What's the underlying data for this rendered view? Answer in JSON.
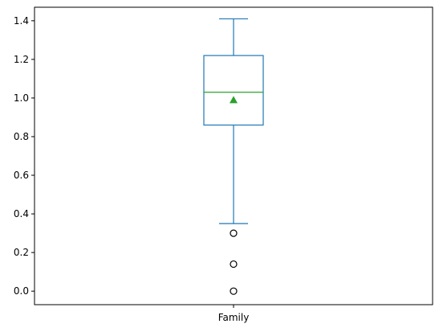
{
  "chart_data": {
    "type": "box",
    "title": "",
    "xlabel": "",
    "ylabel": "",
    "categories": [
      "Family"
    ],
    "ylim": [
      -0.07,
      1.47
    ],
    "yticks": [
      0.0,
      0.2,
      0.4,
      0.6,
      0.8,
      1.0,
      1.2,
      1.4
    ],
    "ytick_labels": [
      "0.0",
      "0.2",
      "0.4",
      "0.6",
      "0.8",
      "1.0",
      "1.2",
      "1.4"
    ],
    "box": {
      "whisker_low": 0.35,
      "q1": 0.86,
      "median": 1.03,
      "q3": 1.22,
      "whisker_high": 1.41,
      "mean": 0.99,
      "outliers": [
        0.0,
        0.14,
        0.3
      ]
    },
    "grid": false,
    "colors": {
      "box": "#1f77b4",
      "median": "#2ca02c",
      "mean_marker": "#2ca02c",
      "outlier": "#000000",
      "axes": "#000000"
    }
  }
}
